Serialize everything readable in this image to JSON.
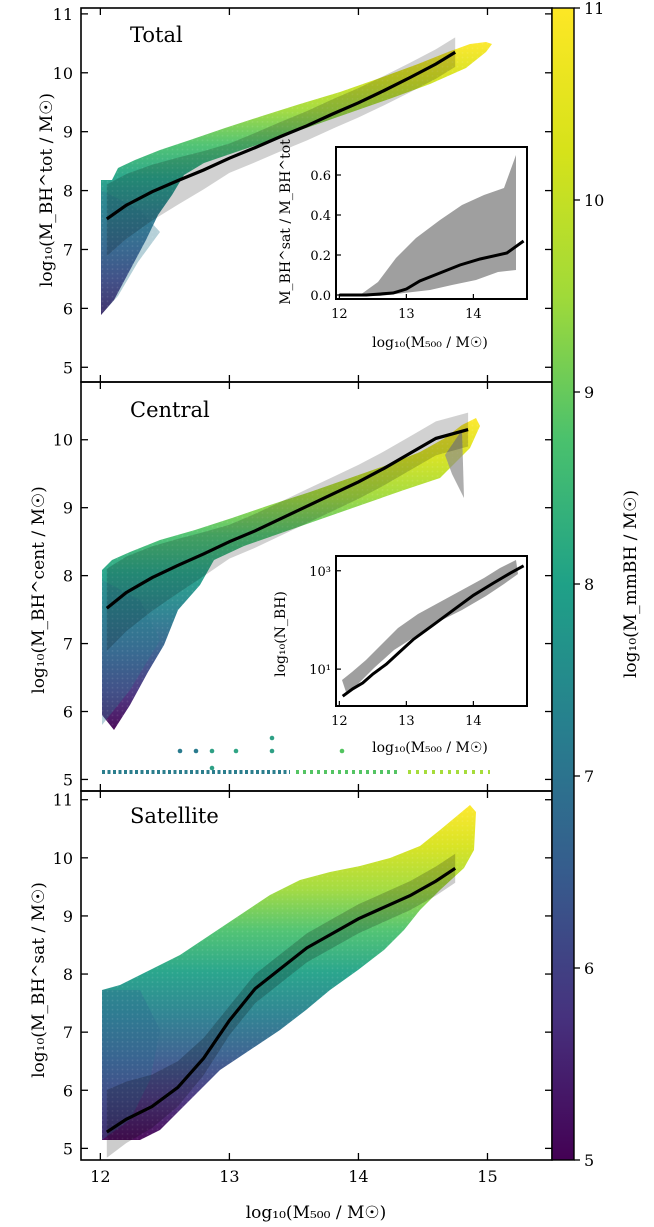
{
  "figure": {
    "xlabel": "log₁₀(M₅₀₀ / M☉)",
    "xlim": [
      11.85,
      15.5
    ],
    "xticks": [
      "12",
      "13",
      "14",
      "15"
    ],
    "colorbar": {
      "label": "log₁₀(M_mmBH / M☉)",
      "range": [
        5,
        11
      ],
      "ticks": [
        "5",
        "6",
        "7",
        "8",
        "9",
        "10",
        "11"
      ],
      "colormap": "viridis"
    }
  },
  "chart_data": [
    {
      "type": "scatter",
      "title": "Total",
      "ylabel": "log₁₀(M_BH^tot / M☉)",
      "ylim": [
        4.75,
        11.1
      ],
      "yticks": [
        "5",
        "6",
        "7",
        "8",
        "9",
        "10",
        "11"
      ],
      "median": {
        "x": [
          12.05,
          12.2,
          12.4,
          12.6,
          12.8,
          13.0,
          13.2,
          13.4,
          13.6,
          13.8,
          14.0,
          14.2,
          14.4,
          14.6,
          14.75
        ],
        "y": [
          7.52,
          7.75,
          7.98,
          8.17,
          8.35,
          8.55,
          8.73,
          8.92,
          9.1,
          9.3,
          9.49,
          9.7,
          9.92,
          10.15,
          10.35
        ]
      },
      "inset": {
        "xlabel": "log₁₀(M₅₀₀ / M☉)",
        "ylabel": "M_BH^sat / M_BH^tot",
        "xlim": [
          11.95,
          14.8
        ],
        "ylim": [
          -0.02,
          0.74
        ],
        "xticks": [
          "12",
          "13",
          "14"
        ],
        "yticks": [
          "0.0",
          "0.2",
          "0.4",
          "0.6"
        ],
        "median": {
          "x": [
            12.0,
            12.4,
            12.8,
            13.0,
            13.2,
            13.5,
            13.8,
            14.1,
            14.5,
            14.75
          ],
          "y": [
            0.0,
            0.0,
            0.01,
            0.03,
            0.07,
            0.11,
            0.15,
            0.18,
            0.21,
            0.27
          ]
        }
      }
    },
    {
      "type": "scatter",
      "title": "Central",
      "ylabel": "log₁₀(M_BH^cent / M☉)",
      "ylim": [
        4.83,
        10.85
      ],
      "yticks": [
        "5",
        "6",
        "7",
        "8",
        "9",
        "10"
      ],
      "median": {
        "x": [
          12.05,
          12.2,
          12.4,
          12.6,
          12.8,
          13.0,
          13.2,
          13.4,
          13.6,
          13.8,
          14.0,
          14.2,
          14.4,
          14.6,
          14.85
        ],
        "y": [
          7.52,
          7.75,
          7.97,
          8.15,
          8.32,
          8.5,
          8.66,
          8.84,
          9.02,
          9.2,
          9.38,
          9.58,
          9.8,
          10.02,
          10.15
        ]
      },
      "inset": {
        "xlabel": "log₁₀(M₅₀₀ / M☉)",
        "ylabel": "log₁₀(N_BH)",
        "xlim": [
          11.95,
          14.8
        ],
        "ylim": [
          0.25,
          3.3
        ],
        "xticks": [
          "12",
          "13",
          "14"
        ],
        "yticks": [
          "10¹",
          "10³"
        ],
        "median": {
          "x": [
            12.05,
            12.2,
            12.35,
            12.5,
            12.7,
            12.9,
            13.1,
            13.4,
            13.7,
            14.0,
            14.3,
            14.55,
            14.75
          ],
          "y": [
            0.45,
            0.6,
            0.72,
            0.9,
            1.1,
            1.35,
            1.6,
            1.9,
            2.2,
            2.5,
            2.75,
            2.95,
            3.1
          ]
        }
      }
    },
    {
      "type": "scatter",
      "title": "Satellite",
      "ylabel": "log₁₀(M_BH^sat / M☉)",
      "ylim": [
        4.8,
        11.15
      ],
      "yticks": [
        "5",
        "6",
        "7",
        "8",
        "9",
        "10",
        "11"
      ],
      "median": {
        "x": [
          12.05,
          12.2,
          12.4,
          12.6,
          12.8,
          13.0,
          13.2,
          13.4,
          13.6,
          13.8,
          14.0,
          14.2,
          14.4,
          14.6,
          14.75
        ],
        "y": [
          5.28,
          5.5,
          5.72,
          6.05,
          6.55,
          7.2,
          7.75,
          8.1,
          8.45,
          8.7,
          8.95,
          9.15,
          9.35,
          9.6,
          9.82
        ]
      }
    }
  ]
}
